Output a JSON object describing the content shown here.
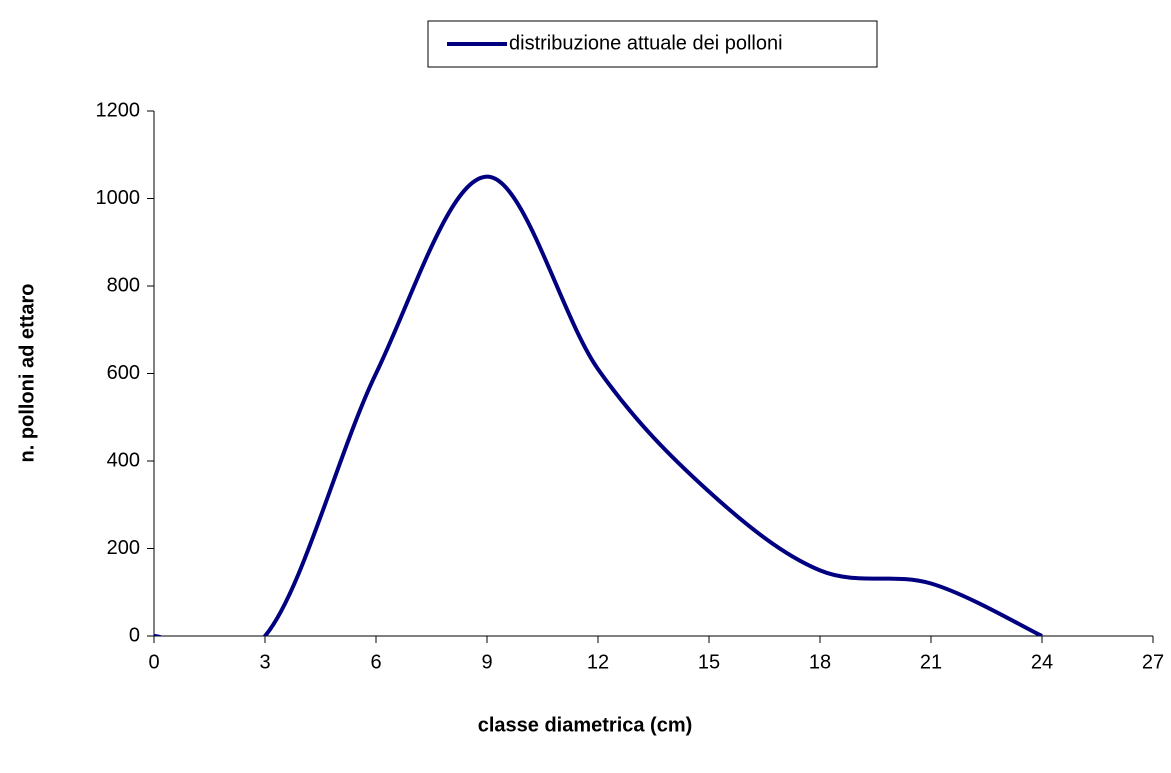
{
  "chart_data": {
    "type": "line",
    "smooth": true,
    "x": [
      0,
      3,
      6,
      9,
      12,
      15,
      18,
      21,
      24
    ],
    "series": [
      {
        "name": "distribuzione attuale dei polloni",
        "color": "#000080",
        "values": [
          0,
          0,
          600,
          1050,
          610,
          330,
          150,
          120,
          0
        ]
      }
    ],
    "xlabel": "classe diametrica (cm)",
    "ylabel": "n. polloni ad ettaro",
    "xlim": [
      0,
      27
    ],
    "xticks": [
      0,
      3,
      6,
      9,
      12,
      15,
      18,
      21,
      24,
      27
    ],
    "ylim": [
      0,
      1200
    ],
    "yticks": [
      0,
      200,
      400,
      600,
      800,
      1000,
      1200
    ],
    "legend": "top"
  }
}
